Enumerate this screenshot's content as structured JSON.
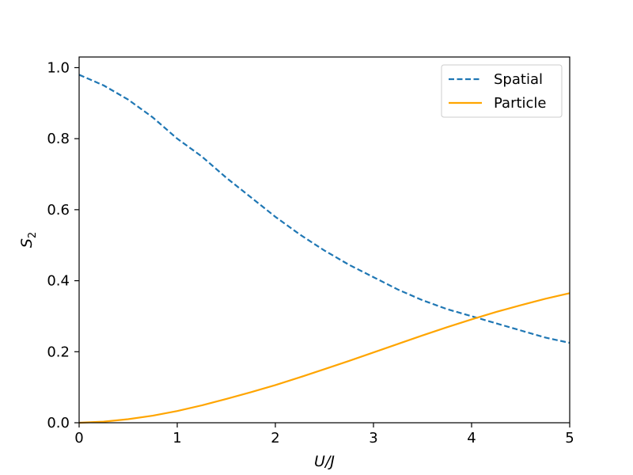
{
  "chart_data": {
    "type": "line",
    "title": "",
    "xlabel": "U/J",
    "ylabel_main": "S",
    "ylabel_sub": "2",
    "xlim": [
      0,
      5
    ],
    "ylim": [
      0,
      1.03
    ],
    "xticks": [
      0,
      1,
      2,
      3,
      4,
      5
    ],
    "xtick_labels": [
      "0",
      "1",
      "2",
      "3",
      "4",
      "5"
    ],
    "yticks": [
      0,
      0.2,
      0.4,
      0.6,
      0.8,
      1.0
    ],
    "ytick_labels": [
      "0.0",
      "0.2",
      "0.4",
      "0.6",
      "0.8",
      "1.0"
    ],
    "grid": false,
    "legend_position": "top-right",
    "series": [
      {
        "name": "Spatial",
        "color": "#1f77b4",
        "style": "dashed",
        "x": [
          0,
          0.25,
          0.5,
          0.75,
          1.0,
          1.25,
          1.5,
          1.75,
          2.0,
          2.25,
          2.5,
          2.75,
          3.0,
          3.25,
          3.5,
          3.75,
          4.0,
          4.25,
          4.5,
          4.75,
          5.0
        ],
        "y": [
          0.98,
          0.95,
          0.91,
          0.86,
          0.8,
          0.75,
          0.69,
          0.635,
          0.58,
          0.53,
          0.485,
          0.445,
          0.41,
          0.375,
          0.345,
          0.32,
          0.3,
          0.28,
          0.26,
          0.24,
          0.225
        ]
      },
      {
        "name": "Particle",
        "color": "#ffa500",
        "style": "solid",
        "x": [
          0,
          0.25,
          0.5,
          0.75,
          1.0,
          1.25,
          1.5,
          1.75,
          2.0,
          2.25,
          2.5,
          2.75,
          3.0,
          3.25,
          3.5,
          3.75,
          4.0,
          4.25,
          4.5,
          4.75,
          5.0
        ],
        "y": [
          0.0,
          0.003,
          0.01,
          0.02,
          0.033,
          0.049,
          0.067,
          0.086,
          0.106,
          0.128,
          0.151,
          0.174,
          0.198,
          0.222,
          0.246,
          0.269,
          0.291,
          0.312,
          0.331,
          0.349,
          0.365
        ]
      }
    ]
  }
}
